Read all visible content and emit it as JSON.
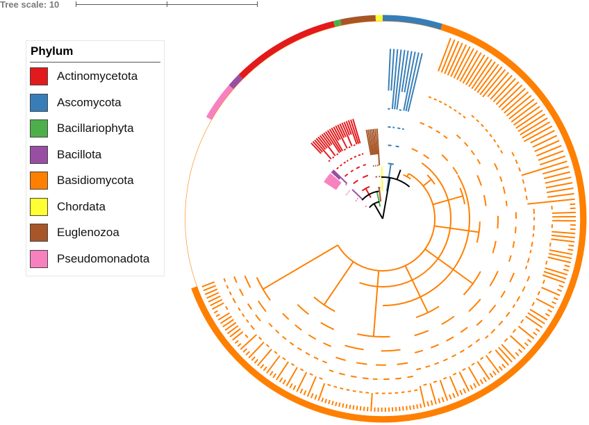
{
  "scale": {
    "label": "Tree scale: 10"
  },
  "legend": {
    "title": "Phylum",
    "items": [
      {
        "label": "Actinomycetota",
        "color": "#e31a1c"
      },
      {
        "label": "Ascomycota",
        "color": "#377eb8"
      },
      {
        "label": "Bacillariophyta",
        "color": "#4daf4a"
      },
      {
        "label": "Bacillota",
        "color": "#984ea3"
      },
      {
        "label": "Basidiomycota",
        "color": "#ff7f00"
      },
      {
        "label": "Chordata",
        "color": "#ffff33"
      },
      {
        "label": "Euglenozoa",
        "color": "#a65628"
      },
      {
        "label": "Pseudomonadota",
        "color": "#f781bf"
      }
    ]
  }
}
